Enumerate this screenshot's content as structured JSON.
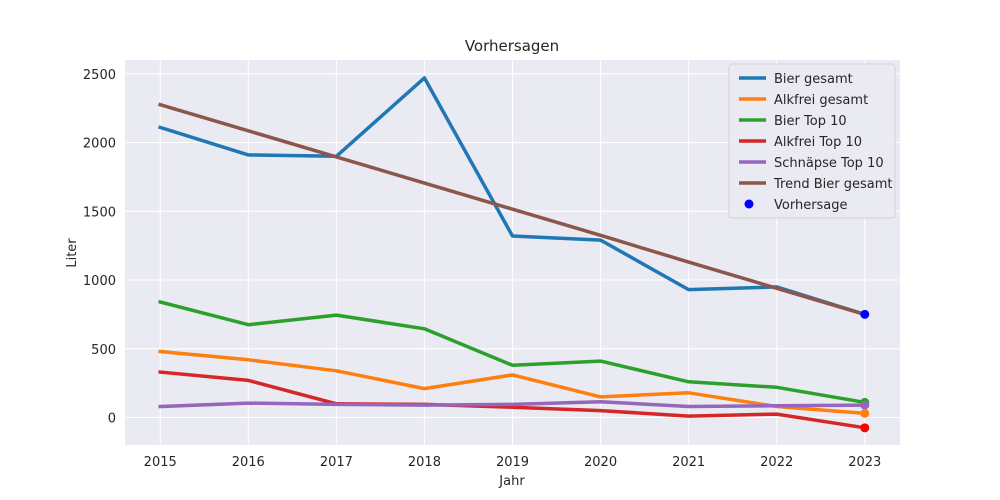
{
  "chart_data": {
    "type": "line",
    "title": "Vorhersagen",
    "xlabel": "Jahr",
    "ylabel": "Liter",
    "x": [
      2015,
      2016,
      2017,
      2018,
      2019,
      2020,
      2021,
      2022,
      2023
    ],
    "xlim": [
      2014.6,
      2023.4
    ],
    "ylim": [
      -200,
      2600
    ],
    "yticks": [
      0,
      500,
      1000,
      1500,
      2000,
      2500
    ],
    "grid": true,
    "legend_position": "top-right",
    "series": [
      {
        "name": "Bier gesamt",
        "color": "#1f77b4",
        "values": [
          2110,
          1910,
          1900,
          2470,
          1320,
          1290,
          930,
          950,
          750
        ]
      },
      {
        "name": "Alkfrei gesamt",
        "color": "#ff7f0e",
        "values": [
          480,
          420,
          340,
          210,
          310,
          150,
          180,
          80,
          30
        ]
      },
      {
        "name": "Bier Top 10",
        "color": "#2ca02c",
        "values": [
          840,
          675,
          745,
          645,
          380,
          410,
          260,
          220,
          110
        ]
      },
      {
        "name": "Alkfrei Top 10",
        "color": "#d62728",
        "values": [
          330,
          270,
          100,
          95,
          75,
          50,
          10,
          25,
          -75
        ]
      },
      {
        "name": "Schnäpse Top 10",
        "color": "#9467bd",
        "values": [
          80,
          105,
          95,
          90,
          95,
          115,
          80,
          85,
          90
        ]
      },
      {
        "name": "Trend Bier gesamt",
        "color": "#8c564b",
        "values": [
          2275,
          2085,
          1895,
          1705,
          1515,
          1325,
          1130,
          940,
          750
        ]
      }
    ],
    "scatter": {
      "name": "Vorhersage",
      "legend_color": "#0000ff",
      "points": [
        {
          "x": 2023,
          "y": 750,
          "color": "#0000ff"
        },
        {
          "x": 2023,
          "y": 110,
          "color": "#2ca02c"
        },
        {
          "x": 2023,
          "y": 90,
          "color": "#9467bd"
        },
        {
          "x": 2023,
          "y": 30,
          "color": "#ff7f0e"
        },
        {
          "x": 2023,
          "y": -75,
          "color": "#ff0000"
        }
      ]
    }
  }
}
